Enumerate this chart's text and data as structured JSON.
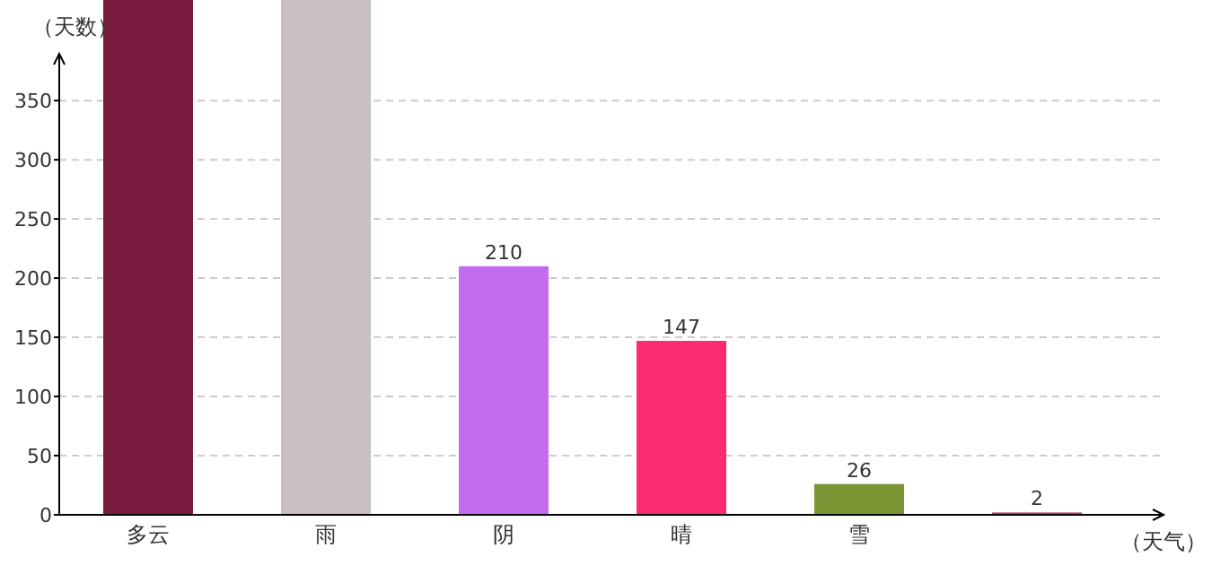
{
  "chart_data": {
    "type": "bar",
    "ylabel": "（天数）",
    "xlabel": "（天气）",
    "categories": [
      "多云",
      "雨",
      "阴",
      "晴",
      "雪",
      null
    ],
    "values": [
      435,
      435,
      210,
      147,
      26,
      2
    ],
    "colors": [
      "#7a1c40",
      "#c9bec3",
      "#c46cf0",
      "#fc2c73",
      "#7b9434",
      "#bd4667"
    ],
    "value_labels": [
      null,
      null,
      "210",
      "147",
      "26",
      "2"
    ],
    "ylim": [
      0,
      435
    ],
    "yticks": [
      0,
      50,
      100,
      150,
      200,
      250,
      300,
      350
    ],
    "grid": "y"
  }
}
